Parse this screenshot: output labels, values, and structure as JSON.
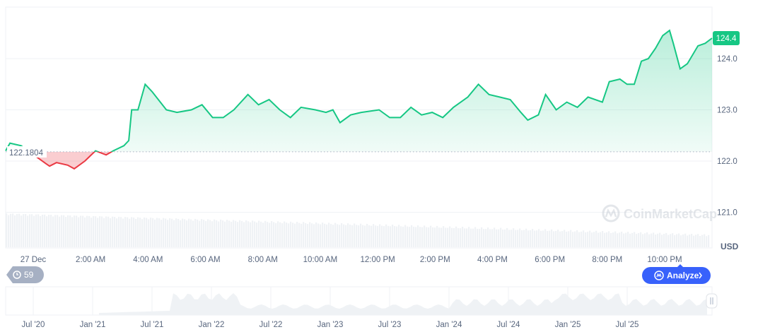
{
  "chart_data": {
    "type": "line",
    "currency": "USD",
    "baseline": {
      "value": 122.1804,
      "label": "122.1804"
    },
    "current": {
      "value": 124.4,
      "label": "124.4"
    },
    "ylim": [
      120.3,
      125.0
    ],
    "y_ticks": [
      {
        "v": 124.0,
        "label": "124.0"
      },
      {
        "v": 123.0,
        "label": "123.0"
      },
      {
        "v": 122.0,
        "label": "122.0"
      },
      {
        "v": 121.0,
        "label": "121.0"
      }
    ],
    "x_range_hours": [
      -0.96,
      23.65
    ],
    "x_ticks": [
      {
        "h": 0,
        "label": "27 Dec"
      },
      {
        "h": 2,
        "label": "2:00 AM"
      },
      {
        "h": 4,
        "label": "4:00 AM"
      },
      {
        "h": 6,
        "label": "6:00 AM"
      },
      {
        "h": 8,
        "label": "8:00 AM"
      },
      {
        "h": 10,
        "label": "10:00 AM"
      },
      {
        "h": 12,
        "label": "12:00 PM"
      },
      {
        "h": 14,
        "label": "2:00 PM"
      },
      {
        "h": 16,
        "label": "4:00 PM"
      },
      {
        "h": 18,
        "label": "6:00 PM"
      },
      {
        "h": 20,
        "label": "8:00 PM"
      },
      {
        "h": 22,
        "label": "10:00 PM"
      }
    ],
    "series": [
      {
        "name": "price",
        "points": [
          [
            -0.96,
            122.2
          ],
          [
            -0.81,
            122.35
          ],
          [
            -0.42,
            122.3
          ],
          [
            0.44,
            121.95
          ],
          [
            0.57,
            121.9
          ],
          [
            0.81,
            121.97
          ],
          [
            1.2,
            121.92
          ],
          [
            1.43,
            121.85
          ],
          [
            1.8,
            122.0
          ],
          [
            2.17,
            122.2
          ],
          [
            2.54,
            122.12
          ],
          [
            2.79,
            122.2
          ],
          [
            3.16,
            122.3
          ],
          [
            3.33,
            122.4
          ],
          [
            3.43,
            123.0
          ],
          [
            3.65,
            123.0
          ],
          [
            3.9,
            123.5
          ],
          [
            4.15,
            123.35
          ],
          [
            4.64,
            123.0
          ],
          [
            5.01,
            122.95
          ],
          [
            5.51,
            123.0
          ],
          [
            5.88,
            123.1
          ],
          [
            6.25,
            122.85
          ],
          [
            6.62,
            122.85
          ],
          [
            6.99,
            123.0
          ],
          [
            7.48,
            123.3
          ],
          [
            7.85,
            123.1
          ],
          [
            8.22,
            123.2
          ],
          [
            8.59,
            123.0
          ],
          [
            8.96,
            122.85
          ],
          [
            9.33,
            123.05
          ],
          [
            9.83,
            123.0
          ],
          [
            10.2,
            122.95
          ],
          [
            10.44,
            123.0
          ],
          [
            10.69,
            122.75
          ],
          [
            11.06,
            122.9
          ],
          [
            11.43,
            122.95
          ],
          [
            12.05,
            123.0
          ],
          [
            12.42,
            122.85
          ],
          [
            12.79,
            122.85
          ],
          [
            13.16,
            123.05
          ],
          [
            13.53,
            122.9
          ],
          [
            13.9,
            122.95
          ],
          [
            14.27,
            122.85
          ],
          [
            14.64,
            123.05
          ],
          [
            15.14,
            123.25
          ],
          [
            15.51,
            123.5
          ],
          [
            15.88,
            123.3
          ],
          [
            16.25,
            123.25
          ],
          [
            16.62,
            123.2
          ],
          [
            16.99,
            122.95
          ],
          [
            17.23,
            122.8
          ],
          [
            17.6,
            122.9
          ],
          [
            17.85,
            123.3
          ],
          [
            18.22,
            123.0
          ],
          [
            18.59,
            123.15
          ],
          [
            18.96,
            123.05
          ],
          [
            19.33,
            123.25
          ],
          [
            19.83,
            123.15
          ],
          [
            20.07,
            123.55
          ],
          [
            20.44,
            123.6
          ],
          [
            20.69,
            123.5
          ],
          [
            20.94,
            123.5
          ],
          [
            21.19,
            123.95
          ],
          [
            21.43,
            124.0
          ],
          [
            21.68,
            124.2
          ],
          [
            21.93,
            124.45
          ],
          [
            22.17,
            124.55
          ],
          [
            22.3,
            124.3
          ],
          [
            22.54,
            123.8
          ],
          [
            22.79,
            123.9
          ],
          [
            23.16,
            124.25
          ],
          [
            23.41,
            124.3
          ],
          [
            23.65,
            124.4
          ]
        ]
      }
    ],
    "navigator": {
      "x_ticks": [
        "Jul '20",
        "Jan '21",
        "Jul '21",
        "Jan '22",
        "Jul '22",
        "Jan '23",
        "Jul '23",
        "Jan '24",
        "Jul '24",
        "Jan '25",
        "Jul '25"
      ]
    }
  },
  "badge_history": "59",
  "analyze_label": "Analyze",
  "watermark": "CoinMarketCap",
  "colors": {
    "up": "#16c784",
    "down": "#ea3943",
    "accent": "#3861fb",
    "grid": "#eff2f5",
    "text": "#58667e"
  }
}
